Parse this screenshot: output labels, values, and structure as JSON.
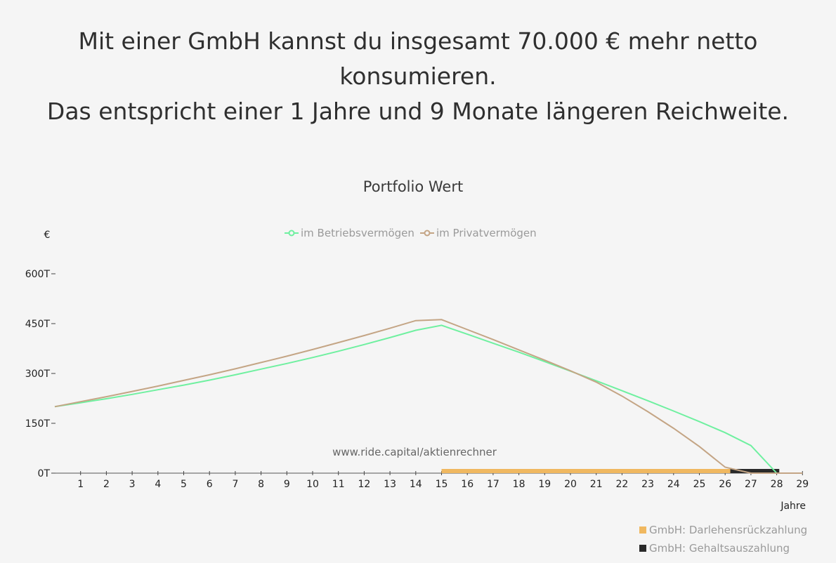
{
  "headline": {
    "line1": "Mit einer GmbH kannst du insgesamt 70.000 € mehr netto",
    "line2": "konsumieren.",
    "line3": "Das entspricht einer 1 Jahre und 9 Monate längeren Reichweite."
  },
  "watermark": "www.ride.capital/aktienrechner",
  "chart_data": {
    "type": "line",
    "title": "Portfolio Wert",
    "ylabel": "€",
    "xlabel": "Jahre",
    "ylim": [
      0,
      600000
    ],
    "yticks": [
      {
        "value": 0,
        "label": "0T"
      },
      {
        "value": 150000,
        "label": "150T"
      },
      {
        "value": 300000,
        "label": "300T"
      },
      {
        "value": 450000,
        "label": "450T"
      },
      {
        "value": 600000,
        "label": "600T"
      }
    ],
    "xlim": [
      0,
      29
    ],
    "xticks": [
      1,
      2,
      3,
      4,
      5,
      6,
      7,
      8,
      9,
      10,
      11,
      12,
      13,
      14,
      15,
      16,
      17,
      18,
      19,
      20,
      21,
      22,
      23,
      24,
      25,
      26,
      27,
      28,
      29
    ],
    "legend_position": "top",
    "series": [
      {
        "name": "im Betriebsvermögen",
        "color": "#6ff0a0",
        "points": [
          [
            0,
            200000
          ],
          [
            1,
            212000
          ],
          [
            2,
            224000
          ],
          [
            3,
            237000
          ],
          [
            4,
            251000
          ],
          [
            5,
            265000
          ],
          [
            6,
            280000
          ],
          [
            7,
            296000
          ],
          [
            8,
            313000
          ],
          [
            9,
            330000
          ],
          [
            10,
            348000
          ],
          [
            11,
            367000
          ],
          [
            12,
            387000
          ],
          [
            13,
            408000
          ],
          [
            14,
            430000
          ],
          [
            15,
            445000
          ],
          [
            16,
            418000
          ],
          [
            17,
            391000
          ],
          [
            18,
            364000
          ],
          [
            19,
            336000
          ],
          [
            20,
            307000
          ],
          [
            21,
            278000
          ],
          [
            22,
            248000
          ],
          [
            23,
            218000
          ],
          [
            24,
            187000
          ],
          [
            25,
            155000
          ],
          [
            26,
            122000
          ],
          [
            27,
            83000
          ],
          [
            28,
            0
          ]
        ]
      },
      {
        "name": "im Privatvermögen",
        "color": "#c4a585",
        "points": [
          [
            0,
            200000
          ],
          [
            1,
            215000
          ],
          [
            2,
            230000
          ],
          [
            3,
            246000
          ],
          [
            4,
            262000
          ],
          [
            5,
            279000
          ],
          [
            6,
            296000
          ],
          [
            7,
            314000
          ],
          [
            8,
            333000
          ],
          [
            9,
            352000
          ],
          [
            10,
            372000
          ],
          [
            11,
            393000
          ],
          [
            12,
            414000
          ],
          [
            13,
            436000
          ],
          [
            14,
            459000
          ],
          [
            15,
            462000
          ],
          [
            16,
            432000
          ],
          [
            17,
            402000
          ],
          [
            18,
            371000
          ],
          [
            19,
            340000
          ],
          [
            20,
            308000
          ],
          [
            21,
            274000
          ],
          [
            22,
            232000
          ],
          [
            23,
            185000
          ],
          [
            24,
            135000
          ],
          [
            25,
            80000
          ],
          [
            26,
            18000
          ],
          [
            27,
            0
          ],
          [
            28,
            0
          ],
          [
            29,
            0
          ]
        ]
      }
    ],
    "bars": [
      {
        "name": "GmbH: Darlehensrückzahlung",
        "color": "#f0b860",
        "from": 15,
        "to": 26.2
      },
      {
        "name": "GmbH: Gehaltsauszahlung",
        "color": "#2a2a2a",
        "from": 26.2,
        "to": 28.1
      }
    ]
  }
}
